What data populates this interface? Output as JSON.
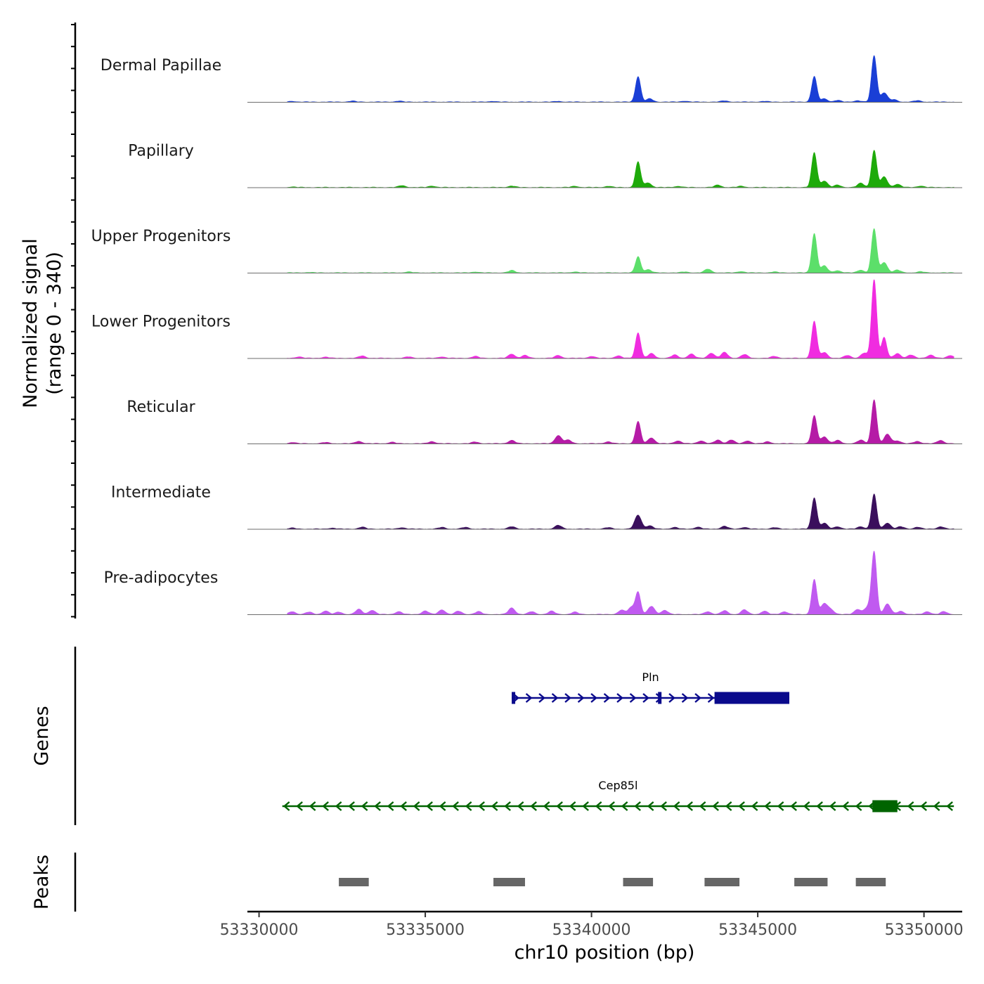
{
  "chart_data": {
    "type": "area",
    "title": "",
    "coverage_axis_label": [
      "Normalized signal",
      "(range 0 - 340)"
    ],
    "signal_range": [
      0,
      340
    ],
    "xlabel": "chr10 position (bp)",
    "xlim": [
      53329650,
      53351150
    ],
    "x_ticks": [
      53330000,
      53335000,
      53340000,
      53345000,
      53350000
    ],
    "x_tick_labels": [
      "53330000",
      "53335000",
      "53340000",
      "53345000",
      "53350000"
    ],
    "tracks": [
      {
        "name": "Dermal Papillae",
        "color": "#1a3fd6",
        "peaks": [
          [
            53331000,
            3
          ],
          [
            53332800,
            4
          ],
          [
            53334200,
            4
          ],
          [
            53337000,
            3
          ],
          [
            53339000,
            3
          ],
          [
            53341400,
            110
          ],
          [
            53341750,
            14
          ],
          [
            53342800,
            4
          ],
          [
            53344000,
            5
          ],
          [
            53345200,
            3
          ],
          [
            53346700,
            110
          ],
          [
            53347000,
            14
          ],
          [
            53347400,
            7
          ],
          [
            53348000,
            6
          ],
          [
            53348500,
            200
          ],
          [
            53348800,
            40
          ],
          [
            53349100,
            10
          ],
          [
            53349800,
            6
          ]
        ]
      },
      {
        "name": "Papillary",
        "color": "#1eaa0a",
        "peaks": [
          [
            53331000,
            2
          ],
          [
            53334300,
            8
          ],
          [
            53335200,
            6
          ],
          [
            53337600,
            6
          ],
          [
            53339500,
            5
          ],
          [
            53340500,
            5
          ],
          [
            53341400,
            110
          ],
          [
            53341700,
            20
          ],
          [
            53342600,
            5
          ],
          [
            53343800,
            10
          ],
          [
            53344500,
            5
          ],
          [
            53346700,
            150
          ],
          [
            53347000,
            28
          ],
          [
            53347400,
            10
          ],
          [
            53348100,
            18
          ],
          [
            53348500,
            160
          ],
          [
            53348800,
            45
          ],
          [
            53349200,
            14
          ],
          [
            53349900,
            6
          ]
        ]
      },
      {
        "name": "Upper Progenitors",
        "color": "#5cdf6a",
        "peaks": [
          [
            53331500,
            2
          ],
          [
            53334500,
            4
          ],
          [
            53336500,
            4
          ],
          [
            53337600,
            10
          ],
          [
            53339500,
            4
          ],
          [
            53341400,
            70
          ],
          [
            53341700,
            14
          ],
          [
            53342800,
            4
          ],
          [
            53343500,
            16
          ],
          [
            53344500,
            6
          ],
          [
            53345500,
            4
          ],
          [
            53346700,
            170
          ],
          [
            53347000,
            30
          ],
          [
            53347400,
            10
          ],
          [
            53348100,
            12
          ],
          [
            53348500,
            190
          ],
          [
            53348800,
            45
          ],
          [
            53349200,
            12
          ],
          [
            53349900,
            5
          ]
        ]
      },
      {
        "name": "Lower Progenitors",
        "color": "#f02ce0",
        "peaks": [
          [
            53331200,
            6
          ],
          [
            53332000,
            5
          ],
          [
            53333100,
            10
          ],
          [
            53334500,
            6
          ],
          [
            53335500,
            6
          ],
          [
            53336500,
            8
          ],
          [
            53337600,
            18
          ],
          [
            53338000,
            12
          ],
          [
            53339000,
            12
          ],
          [
            53340000,
            8
          ],
          [
            53340800,
            10
          ],
          [
            53341400,
            110
          ],
          [
            53341800,
            20
          ],
          [
            53342500,
            14
          ],
          [
            53343000,
            18
          ],
          [
            53343600,
            22
          ],
          [
            53344000,
            25
          ],
          [
            53344600,
            16
          ],
          [
            53345500,
            8
          ],
          [
            53346700,
            160
          ],
          [
            53347000,
            25
          ],
          [
            53347700,
            12
          ],
          [
            53348200,
            22
          ],
          [
            53348500,
            340
          ],
          [
            53348800,
            90
          ],
          [
            53349200,
            20
          ],
          [
            53349600,
            14
          ],
          [
            53350200,
            14
          ],
          [
            53350800,
            12
          ]
        ]
      },
      {
        "name": "Reticular",
        "color": "#b51ba6",
        "peaks": [
          [
            53331000,
            5
          ],
          [
            53332000,
            5
          ],
          [
            53333000,
            10
          ],
          [
            53334000,
            6
          ],
          [
            53335200,
            9
          ],
          [
            53336500,
            7
          ],
          [
            53337600,
            14
          ],
          [
            53339000,
            35
          ],
          [
            53339300,
            15
          ],
          [
            53340500,
            8
          ],
          [
            53341400,
            95
          ],
          [
            53341800,
            25
          ],
          [
            53342600,
            12
          ],
          [
            53343300,
            12
          ],
          [
            53343800,
            15
          ],
          [
            53344200,
            16
          ],
          [
            53344700,
            12
          ],
          [
            53345300,
            8
          ],
          [
            53346700,
            120
          ],
          [
            53347000,
            30
          ],
          [
            53347400,
            14
          ],
          [
            53348100,
            15
          ],
          [
            53348500,
            190
          ],
          [
            53348900,
            40
          ],
          [
            53349200,
            12
          ],
          [
            53349800,
            10
          ],
          [
            53350500,
            14
          ]
        ]
      },
      {
        "name": "Intermediate",
        "color": "#3a0f5c",
        "peaks": [
          [
            53331000,
            4
          ],
          [
            53332200,
            4
          ],
          [
            53333100,
            8
          ],
          [
            53334300,
            6
          ],
          [
            53335500,
            7
          ],
          [
            53336200,
            7
          ],
          [
            53337600,
            10
          ],
          [
            53339000,
            16
          ],
          [
            53340500,
            6
          ],
          [
            53341400,
            60
          ],
          [
            53341750,
            14
          ],
          [
            53342500,
            7
          ],
          [
            53343200,
            8
          ],
          [
            53344000,
            12
          ],
          [
            53344600,
            7
          ],
          [
            53345500,
            6
          ],
          [
            53346700,
            135
          ],
          [
            53347000,
            25
          ],
          [
            53347400,
            10
          ],
          [
            53348100,
            10
          ],
          [
            53348500,
            150
          ],
          [
            53348900,
            26
          ],
          [
            53349300,
            10
          ],
          [
            53349800,
            8
          ],
          [
            53350500,
            10
          ]
        ]
      },
      {
        "name": "Pre-adipocytes",
        "color": "#c05af0",
        "peaks": [
          [
            53331000,
            12
          ],
          [
            53331500,
            10
          ],
          [
            53332000,
            15
          ],
          [
            53332400,
            10
          ],
          [
            53333000,
            22
          ],
          [
            53333400,
            18
          ],
          [
            53334200,
            12
          ],
          [
            53335000,
            15
          ],
          [
            53335500,
            20
          ],
          [
            53336000,
            14
          ],
          [
            53336600,
            12
          ],
          [
            53337600,
            28
          ],
          [
            53338200,
            12
          ],
          [
            53338800,
            14
          ],
          [
            53339500,
            10
          ],
          [
            53340900,
            18
          ],
          [
            53341200,
            30
          ],
          [
            53341400,
            95
          ],
          [
            53341800,
            35
          ],
          [
            53342200,
            18
          ],
          [
            53343500,
            12
          ],
          [
            53344000,
            16
          ],
          [
            53344600,
            20
          ],
          [
            53345200,
            14
          ],
          [
            53345800,
            12
          ],
          [
            53346700,
            150
          ],
          [
            53347000,
            45
          ],
          [
            53347200,
            20
          ],
          [
            53348000,
            22
          ],
          [
            53348300,
            30
          ],
          [
            53348500,
            270
          ],
          [
            53348900,
            45
          ],
          [
            53349300,
            14
          ],
          [
            53350100,
            12
          ],
          [
            53350600,
            12
          ]
        ]
      }
    ],
    "genes": [
      {
        "name": "Pln",
        "strand": "+",
        "color": "#0a0a8c",
        "start": 53337600,
        "end": 53345950,
        "exons": [
          [
            53337600,
            53337700
          ],
          [
            53342000,
            53342060
          ],
          [
            53343700,
            53345950
          ]
        ]
      },
      {
        "name": "Cep85l",
        "strand": "-",
        "color": "#006400",
        "start": 53330700,
        "end": 53350900,
        "exons": [
          [
            53348450,
            53349200
          ]
        ]
      }
    ],
    "peaks_regions": [
      [
        53332400,
        53333300
      ],
      [
        53337050,
        53338000
      ],
      [
        53340950,
        53341850
      ],
      [
        53343400,
        53344450
      ],
      [
        53346100,
        53347100
      ],
      [
        53347950,
        53348850
      ]
    ],
    "panel_labels": {
      "genes": "Genes",
      "peaks": "Peaks"
    }
  }
}
